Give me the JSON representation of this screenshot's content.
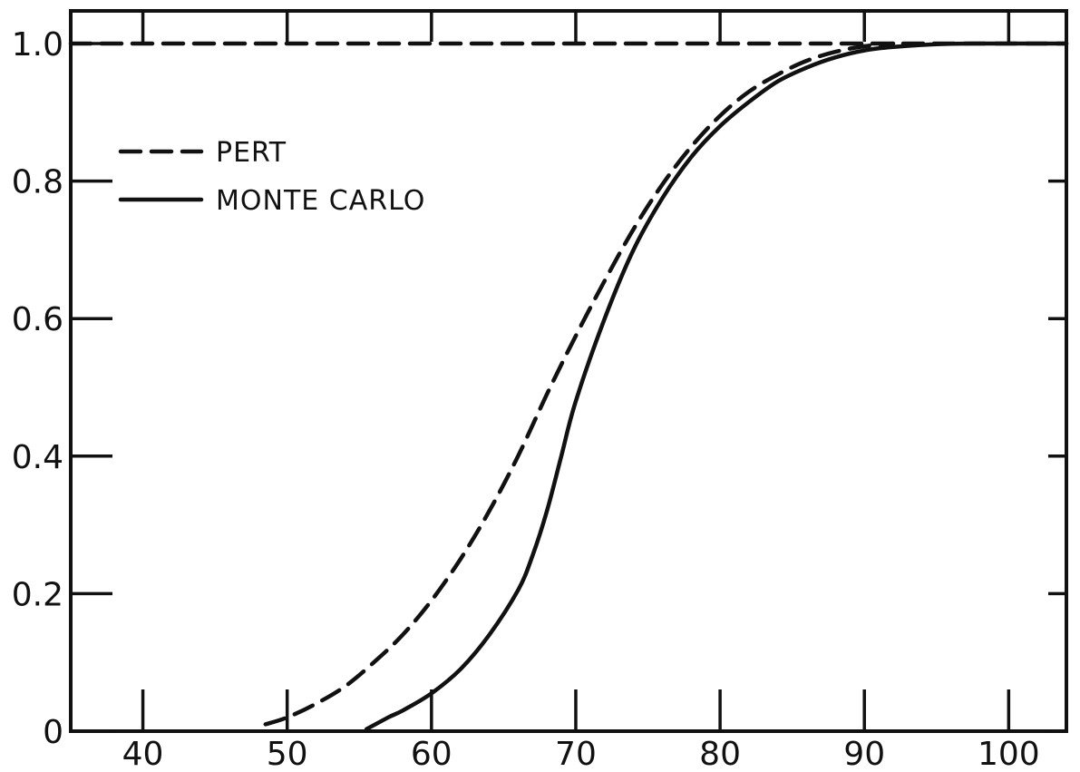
{
  "chart_data": {
    "type": "line",
    "title": "",
    "xlabel": "",
    "ylabel": "",
    "xlim": [
      35,
      104
    ],
    "ylim": [
      0,
      1.0
    ],
    "x_ticks": [
      40,
      50,
      60,
      70,
      80,
      90,
      100
    ],
    "x_tick_labels": [
      "40",
      "50",
      "60",
      "70",
      "80",
      "90",
      "100"
    ],
    "y_ticks": [
      0,
      0.2,
      0.4,
      0.6,
      0.8,
      1.0
    ],
    "y_tick_labels": [
      "0",
      "0.2",
      "0.4",
      "0.6",
      "0.8",
      "1.0"
    ],
    "grid": false,
    "legend_position": "top-left",
    "reference_line": {
      "y": 1.0,
      "style": "dashed"
    },
    "series": [
      {
        "name": "PERT",
        "style": "dashed",
        "color": "#111111",
        "x": [
          48.5,
          50,
          52,
          54,
          56,
          58,
          60,
          62,
          64,
          66,
          68,
          70,
          72,
          74,
          76,
          78,
          80,
          82,
          84,
          86,
          88,
          90,
          92
        ],
        "y": [
          0.01,
          0.02,
          0.04,
          0.065,
          0.1,
          0.14,
          0.19,
          0.25,
          0.32,
          0.4,
          0.49,
          0.575,
          0.655,
          0.73,
          0.795,
          0.85,
          0.895,
          0.93,
          0.955,
          0.975,
          0.988,
          0.996,
          1.0
        ]
      },
      {
        "name": "MONTE CARLO",
        "style": "solid",
        "color": "#111111",
        "x": [
          55.5,
          57,
          58,
          60,
          62,
          64,
          66,
          67,
          68,
          69,
          70,
          72,
          74,
          76,
          78,
          80,
          82,
          84,
          86,
          88,
          90,
          92,
          95,
          98,
          100,
          104
        ],
        "y": [
          0.003,
          0.02,
          0.03,
          0.055,
          0.09,
          0.14,
          0.205,
          0.255,
          0.32,
          0.4,
          0.48,
          0.6,
          0.7,
          0.775,
          0.835,
          0.88,
          0.915,
          0.945,
          0.965,
          0.98,
          0.99,
          0.995,
          0.999,
          1.0,
          1.0,
          1.0
        ]
      }
    ]
  }
}
